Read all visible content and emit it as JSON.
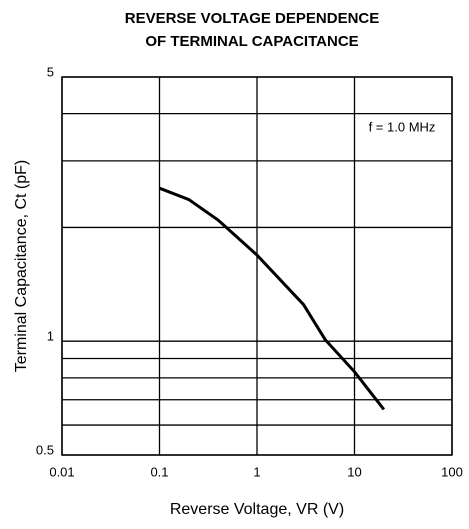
{
  "chart_data": {
    "type": "line",
    "title": [
      "REVERSE VOLTAGE DEPENDENCE",
      "OF TERMINAL CAPACITANCE"
    ],
    "x_label": "Reverse Voltage, VR (V)",
    "y_label": "Terminal Capacitance, Ct (pF)",
    "annotation": "f = 1.0 MHz",
    "x": [
      0.1,
      0.2,
      0.4,
      1,
      3,
      5,
      10,
      20
    ],
    "series": [
      {
        "name": "Ct",
        "color": "#000000",
        "values": [
          2.54,
          2.37,
          2.09,
          1.69,
          1.25,
          1.01,
          0.83,
          0.66
        ]
      }
    ],
    "xlim": [
      0.01,
      100
    ],
    "xticks": [
      0.01,
      0.1,
      1,
      10,
      100
    ],
    "ylim": [
      0.5,
      5
    ],
    "yticks": [
      0.5,
      1,
      5
    ],
    "y_minor_grid": [
      0.6,
      0.7,
      0.8,
      0.9,
      2,
      3,
      4
    ],
    "xscale": "log",
    "yscale": "log",
    "grid": true
  }
}
